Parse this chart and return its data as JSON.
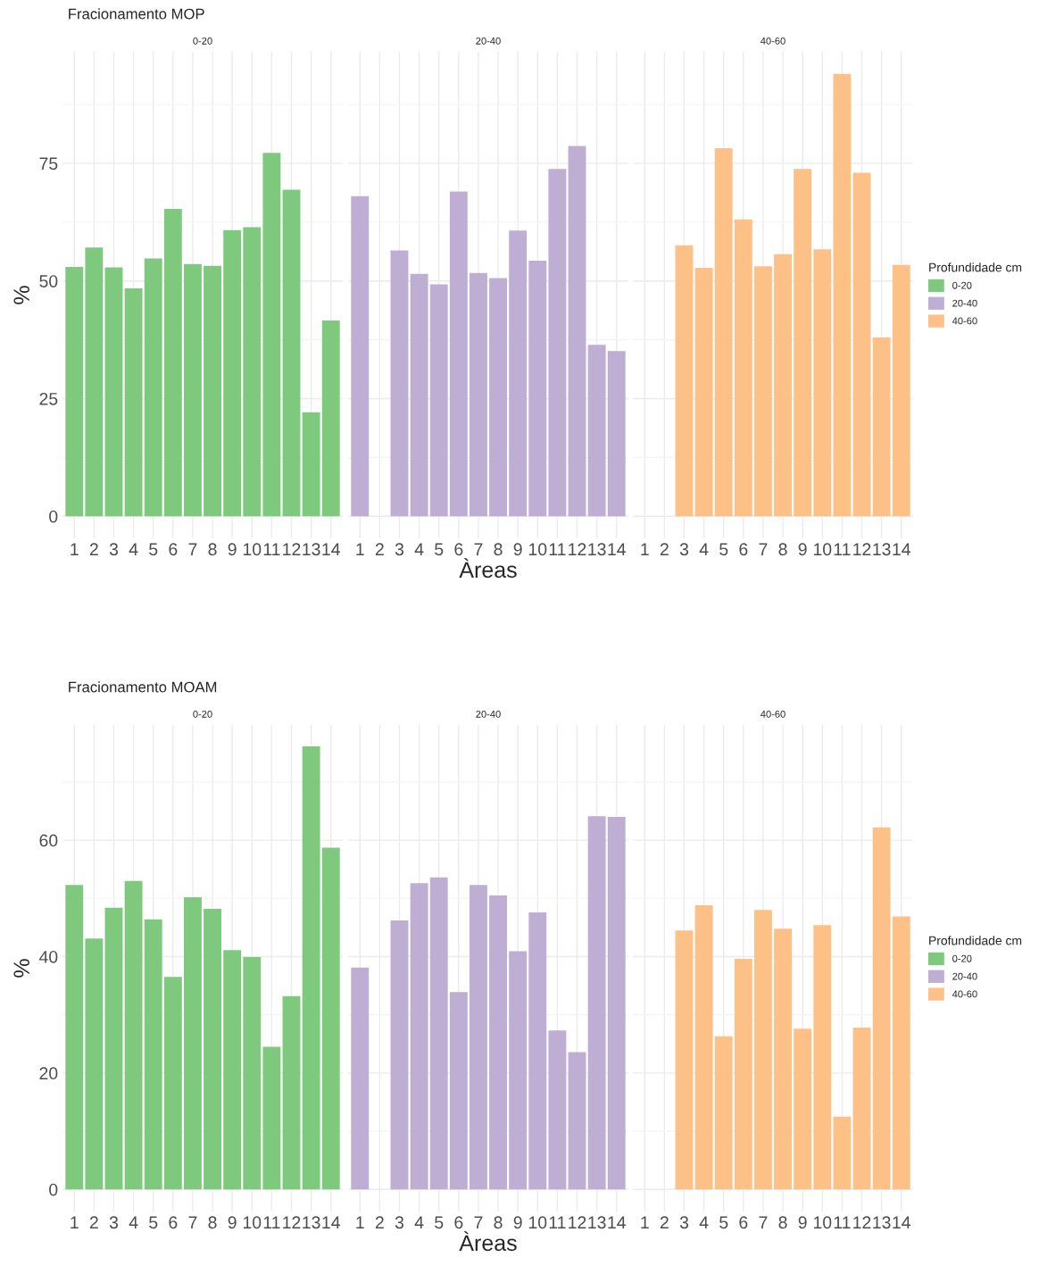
{
  "chart_data": [
    {
      "type": "bar",
      "title": "Fracionamento MOP",
      "subtitle": "0-20",
      "ylabel": "%",
      "categories": [
        "1",
        "2",
        "3",
        "4",
        "5",
        "6",
        "7",
        "8",
        "9",
        "10",
        "11",
        "12",
        "13",
        "14"
      ],
      "ylim": [
        -4.7,
        98.7
      ],
      "yticks": [
        0,
        25,
        50,
        75
      ],
      "grid": true,
      "series": [
        {
          "name": "0-20",
          "color": "#7fc97f",
          "values": [
            53.0,
            57.1,
            52.9,
            48.4,
            54.8,
            65.3,
            53.6,
            53.2,
            60.8,
            61.4,
            77.2,
            69.4,
            22.1,
            41.6
          ]
        }
      ]
    },
    {
      "type": "bar",
      "subtitle": "20-40",
      "xlabel": "Àreas",
      "categories": [
        "1",
        "2",
        "3",
        "4",
        "5",
        "6",
        "7",
        "8",
        "9",
        "10",
        "11",
        "12",
        "13",
        "14"
      ],
      "ylim": [
        -4.7,
        98.7
      ],
      "yticks": [
        0,
        25,
        50,
        75
      ],
      "grid": true,
      "tick_labels": "x",
      "series": [
        {
          "name": "20-40",
          "color": "#beaed4",
          "values": [
            68.0,
            null,
            56.5,
            51.5,
            49.3,
            69.0,
            51.7,
            50.6,
            60.7,
            54.3,
            73.8,
            78.7,
            36.4,
            35.1
          ]
        }
      ]
    },
    {
      "type": "bar",
      "subtitle": "40-60",
      "legend_title": "Profundidade cm",
      "legend": "right",
      "categories": [
        "1",
        "2",
        "3",
        "4",
        "5",
        "6",
        "7",
        "8",
        "9",
        "10",
        "11",
        "12",
        "13",
        "14"
      ],
      "ylim": [
        -4.7,
        98.7
      ],
      "yticks": [
        0,
        25,
        50,
        75
      ],
      "grid": true,
      "tick_labels": "x",
      "series": [
        {
          "name": "40-60",
          "color": "#fdc086",
          "values": [
            null,
            null,
            57.6,
            52.8,
            78.2,
            63.1,
            53.1,
            55.7,
            73.8,
            56.7,
            94.0,
            73.0,
            38.0,
            53.4
          ]
        }
      ]
    },
    {
      "type": "bar",
      "title": "Fracionamento MOAM",
      "subtitle": "0-20",
      "ylabel": "%",
      "categories": [
        "1",
        "2",
        "3",
        "4",
        "5",
        "6",
        "7",
        "8",
        "9",
        "10",
        "11",
        "12",
        "13",
        "14"
      ],
      "ylim": [
        -3.8,
        79.8
      ],
      "yticks": [
        0,
        20,
        40,
        60
      ],
      "grid": true,
      "series": [
        {
          "name": "0-20",
          "color": "#7fc97f",
          "values": [
            52.3,
            43.1,
            48.4,
            53.0,
            46.4,
            36.5,
            50.2,
            48.2,
            41.1,
            39.9,
            24.5,
            33.2,
            76.1,
            58.7
          ]
        }
      ]
    },
    {
      "type": "bar",
      "subtitle": "20-40",
      "xlabel": "Àreas",
      "categories": [
        "1",
        "2",
        "3",
        "4",
        "5",
        "6",
        "7",
        "8",
        "9",
        "10",
        "11",
        "12",
        "13",
        "14"
      ],
      "ylim": [
        -3.8,
        79.8
      ],
      "yticks": [
        0,
        20,
        40,
        60
      ],
      "grid": true,
      "tick_labels": "x",
      "series": [
        {
          "name": "20-40",
          "color": "#beaed4",
          "values": [
            38.1,
            null,
            46.2,
            52.6,
            53.6,
            33.9,
            52.3,
            50.5,
            40.9,
            47.6,
            27.3,
            23.6,
            64.1,
            64.0
          ]
        }
      ]
    },
    {
      "type": "bar",
      "subtitle": "40-60",
      "legend_title": "Profundidade cm",
      "legend": "right",
      "categories": [
        "1",
        "2",
        "3",
        "4",
        "5",
        "6",
        "7",
        "8",
        "9",
        "10",
        "11",
        "12",
        "13",
        "14"
      ],
      "ylim": [
        -3.8,
        79.8
      ],
      "yticks": [
        0,
        20,
        40,
        60
      ],
      "grid": true,
      "tick_labels": "x",
      "series": [
        {
          "name": "40-60",
          "color": "#fdc086",
          "values": [
            null,
            null,
            44.5,
            48.8,
            26.3,
            39.6,
            48.0,
            44.8,
            27.6,
            45.4,
            12.5,
            27.8,
            62.2,
            46.9
          ]
        }
      ]
    }
  ]
}
